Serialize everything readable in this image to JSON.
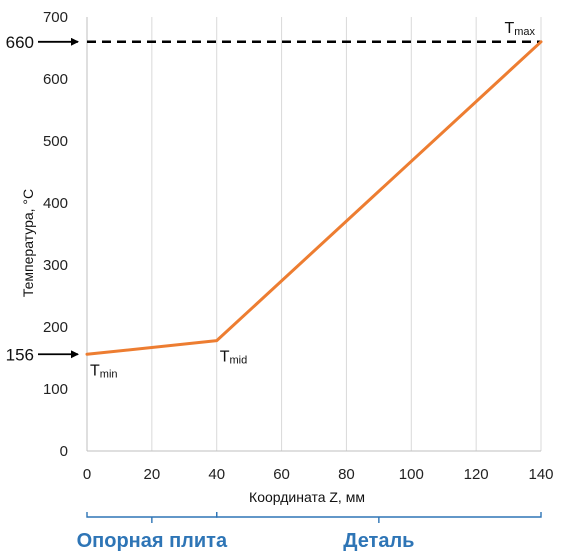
{
  "chart_data": {
    "type": "line",
    "xlabel": "Координата Z, мм",
    "ylabel": "Температура, °C",
    "xlim": [
      0,
      140
    ],
    "ylim": [
      0,
      700
    ],
    "x_ticks": [
      0,
      20,
      40,
      60,
      80,
      100,
      120,
      140
    ],
    "y_ticks": [
      0,
      100,
      200,
      300,
      400,
      500,
      600,
      700
    ],
    "grid": "vertical",
    "series": [
      {
        "x": [
          0,
          40,
          140
        ],
        "y": [
          156,
          178,
          660
        ],
        "color": "#ed7d31"
      }
    ],
    "reference_line": {
      "y": 660,
      "style": "dashed",
      "color": "#000000"
    },
    "point_annotations": [
      {
        "x": 0,
        "y": 156,
        "main": "T",
        "sub": "min"
      },
      {
        "x": 40,
        "y": 178,
        "main": "T",
        "sub": "mid"
      },
      {
        "x": 140,
        "y": 660,
        "main": "T",
        "sub": "max"
      }
    ],
    "value_markers": [
      {
        "y": 660,
        "label": "660"
      },
      {
        "y": 156,
        "label": "156"
      }
    ],
    "regions": [
      {
        "x_start": 0,
        "x_end": 40,
        "label": "Опорная плита",
        "color": "#2e75b6"
      },
      {
        "x_start": 40,
        "x_end": 140,
        "label": "Деталь",
        "color": "#2e75b6"
      }
    ]
  }
}
